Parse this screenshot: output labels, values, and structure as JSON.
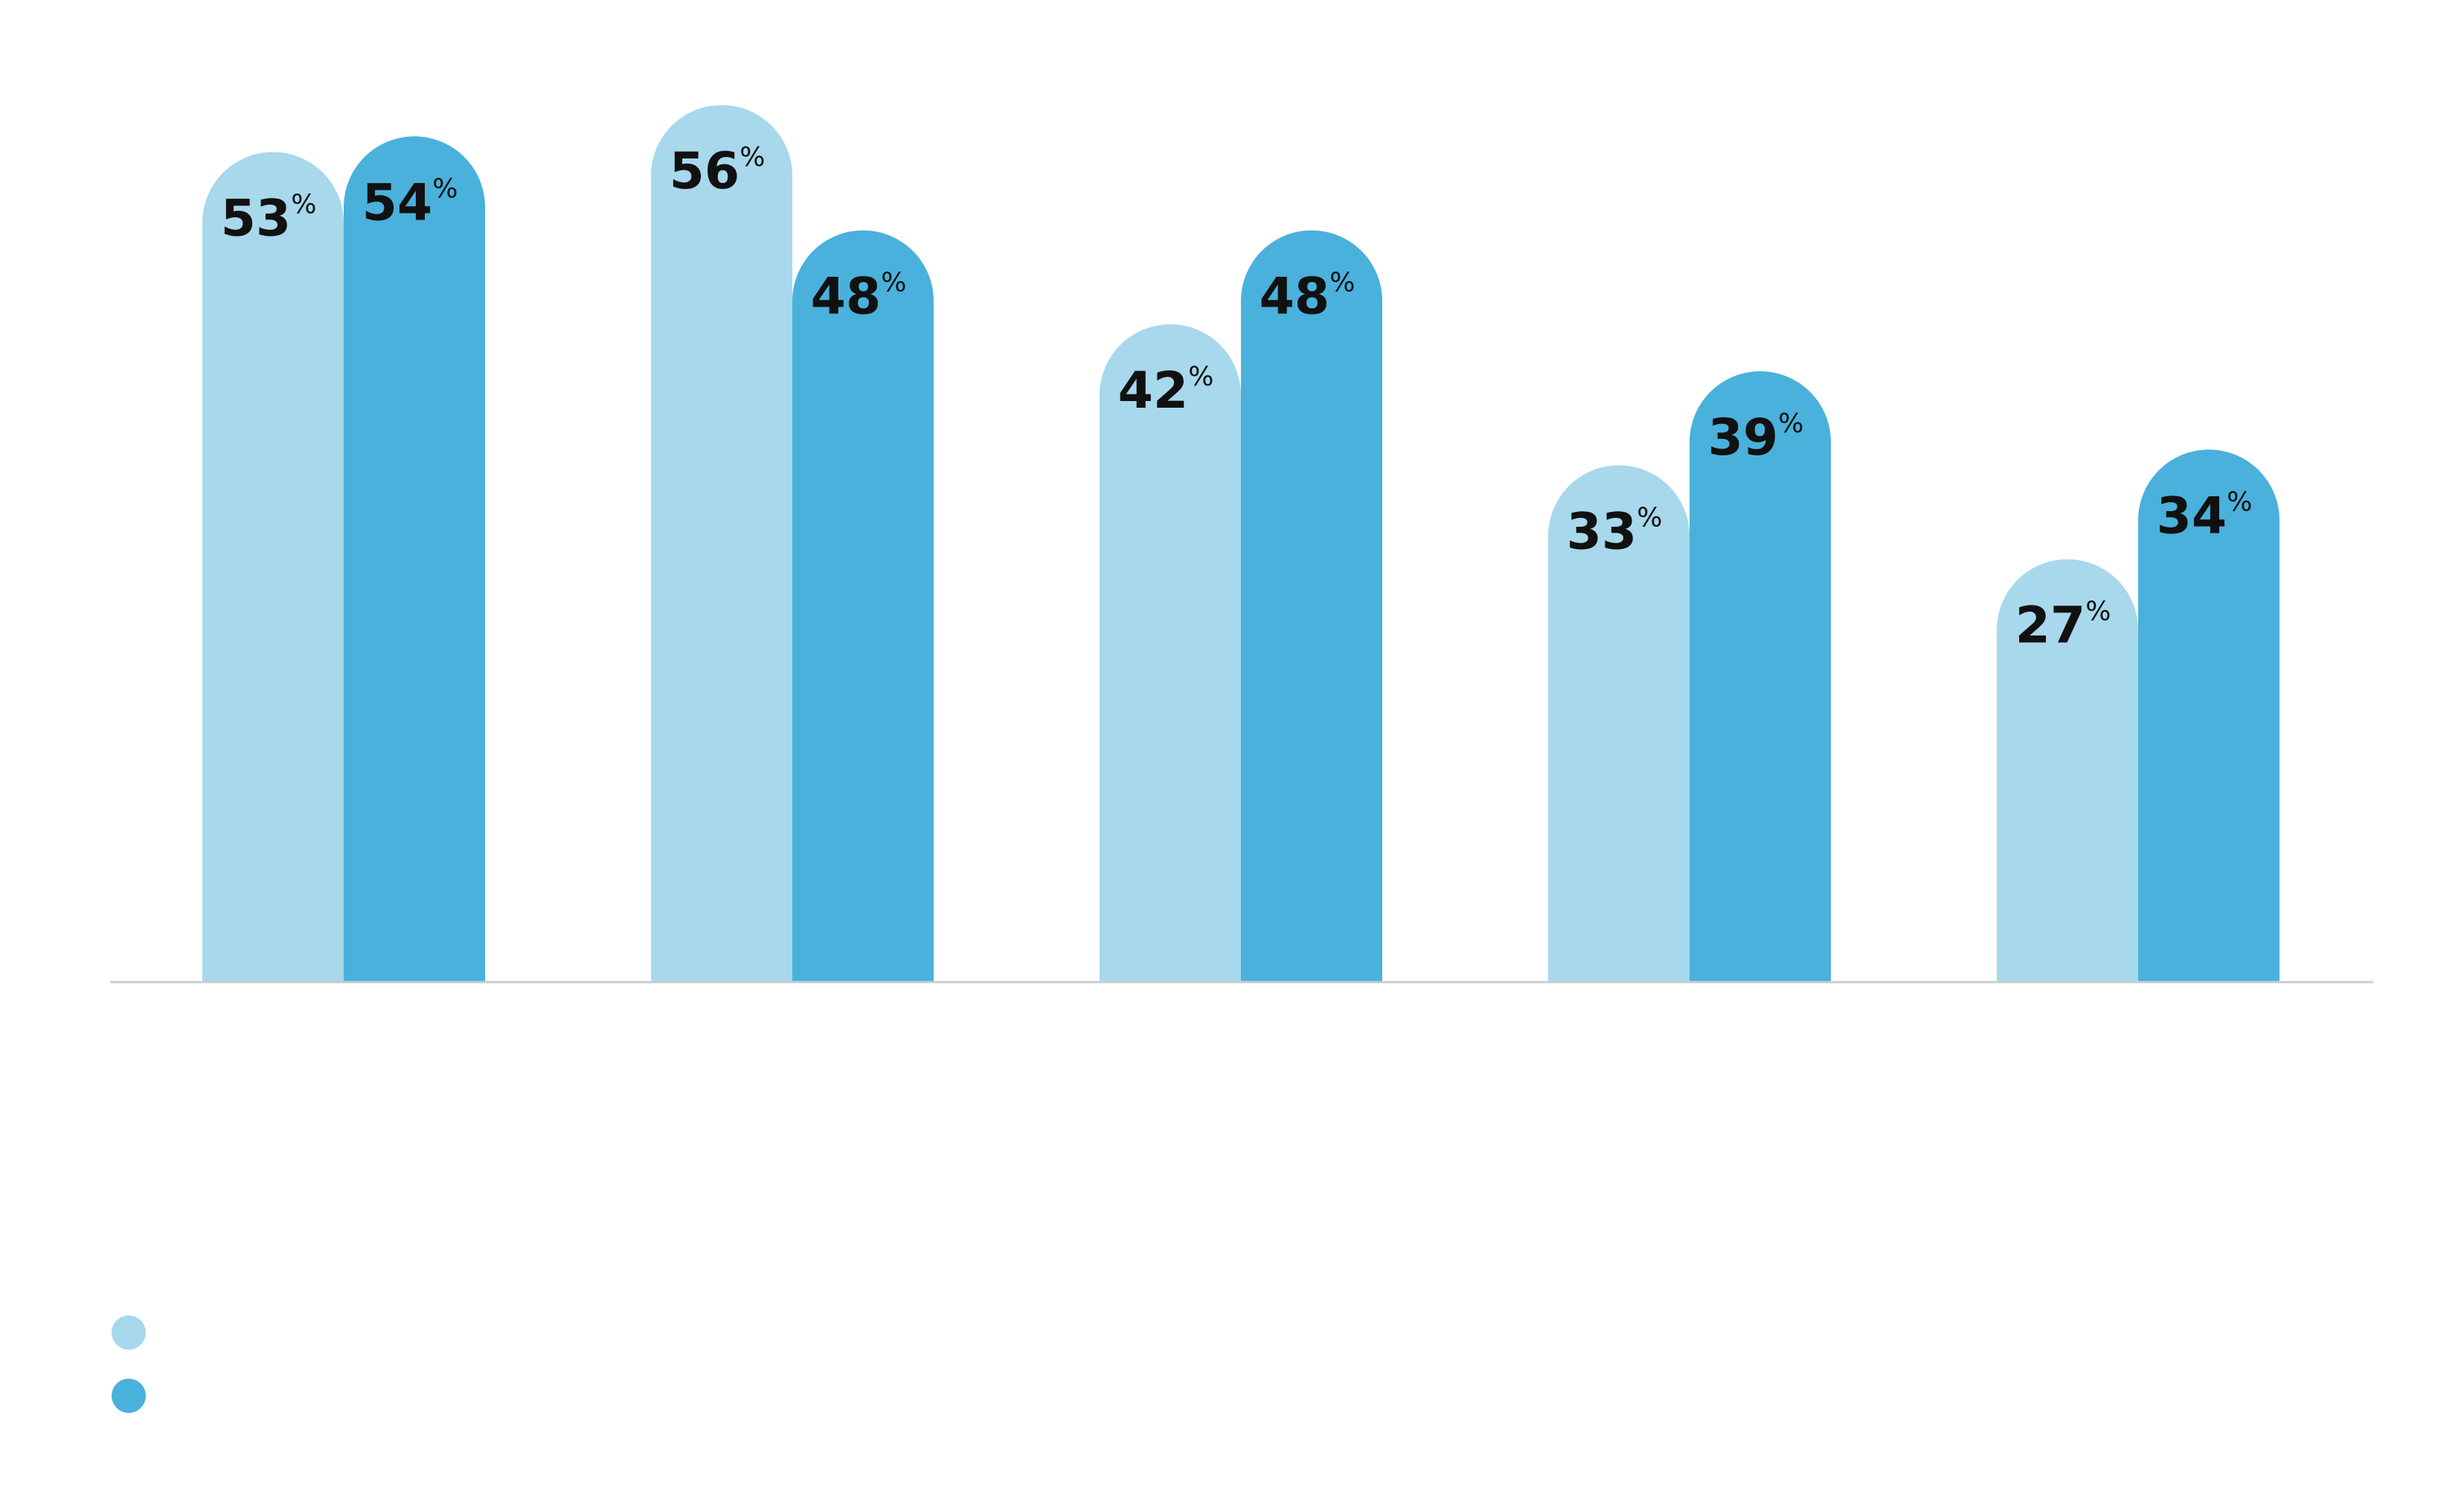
{
  "chart_data": {
    "type": "bar",
    "title": "",
    "xlabel": "",
    "ylabel": "",
    "ylim": [
      0,
      60
    ],
    "grid": false,
    "legend_position": "bottom-left",
    "value_suffix": "%",
    "categories": [
      "",
      "",
      "",
      "",
      ""
    ],
    "series": [
      {
        "name": "",
        "color": "#a8d8ec",
        "values": [
          53,
          56,
          42,
          33,
          27
        ]
      },
      {
        "name": "",
        "color": "#4ab1dc",
        "values": [
          54,
          48,
          48,
          39,
          34
        ]
      }
    ]
  },
  "colors": {
    "axis_line": "#c8ccd0",
    "label_text": "#111111"
  }
}
